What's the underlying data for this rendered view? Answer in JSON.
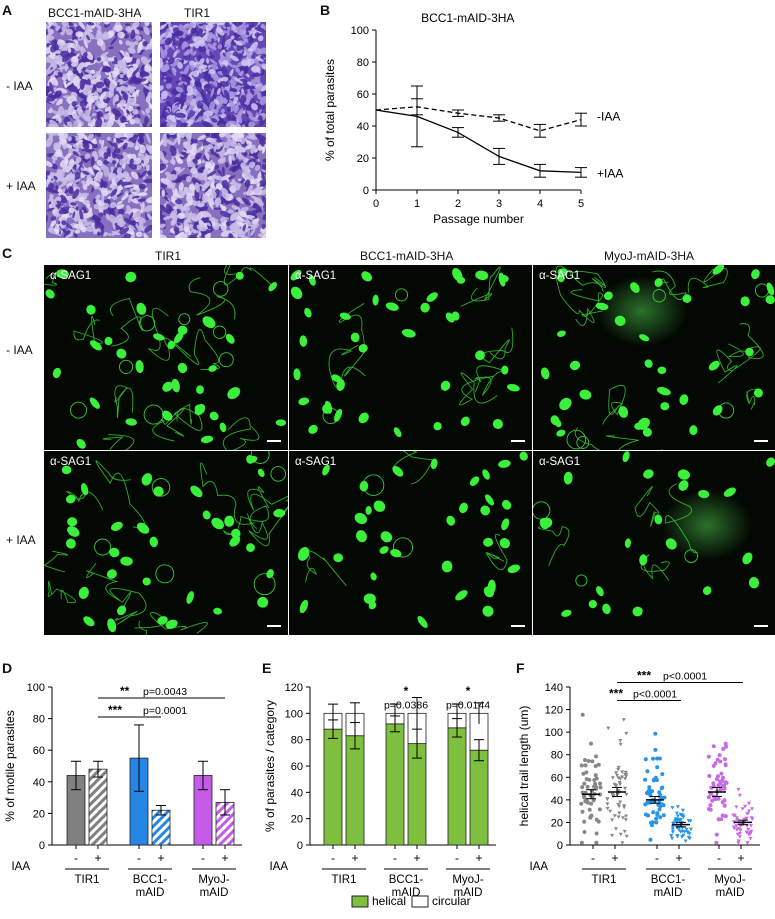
{
  "panels": {
    "A": "A",
    "B": "B",
    "C": "C",
    "D": "D",
    "E": "E",
    "F": "F"
  },
  "panel_a": {
    "col_labels": [
      "BCC1-mAID-3HA",
      "TIR1"
    ],
    "row_labels": [
      "- IAA",
      "+ IAA"
    ]
  },
  "panel_c": {
    "col_labels": [
      "TIR1",
      "BCC1-mAID-3HA",
      "MyoJ-mAID-3HA"
    ],
    "row_labels": [
      "- IAA",
      "+ IAA"
    ],
    "antibody": "α-SAG1"
  },
  "chart_data": [
    {
      "panel": "B",
      "type": "line",
      "title": "BCC1-mAID-3HA",
      "xlabel": "Passage number",
      "ylabel": "% of total parasites",
      "xlim": [
        0,
        5
      ],
      "ylim": [
        0,
        100
      ],
      "x_ticks": [
        0,
        1,
        2,
        3,
        4,
        5
      ],
      "y_ticks": [
        0,
        20,
        40,
        60,
        80,
        100
      ],
      "grid": false,
      "series": [
        {
          "name": "-IAA",
          "style": "dashed",
          "x": [
            0,
            1,
            2,
            3,
            4,
            5
          ],
          "y": [
            50,
            52,
            48,
            45,
            37,
            44
          ],
          "err": [
            0,
            5,
            2,
            2,
            4,
            4
          ]
        },
        {
          "name": "+IAA",
          "style": "solid",
          "x": [
            0,
            1,
            2,
            3,
            4,
            5
          ],
          "y": [
            50,
            46,
            36,
            21,
            12,
            11
          ],
          "err": [
            0,
            19,
            3,
            5,
            4,
            3
          ]
        }
      ]
    },
    {
      "panel": "D",
      "type": "bar",
      "ylabel": "% of motile parasites",
      "ylim": [
        0,
        100
      ],
      "y_ticks": [
        0,
        20,
        40,
        60,
        80,
        100
      ],
      "iaa_label": "IAA",
      "iaa_ticks": [
        "-",
        "+"
      ],
      "groups": [
        "TIR1",
        "BCC1-\nmAID",
        "MyoJ-\nmAID"
      ],
      "values": [
        44,
        48,
        55,
        22,
        44,
        27
      ],
      "errors": [
        9,
        5,
        21,
        3,
        9,
        8
      ],
      "colors": [
        "#808080",
        "#2586e6",
        "#c45ae8"
      ],
      "annotations": [
        {
          "stars": "***",
          "text": "p=0.0001"
        },
        {
          "stars": "**",
          "text": "p=0.0043"
        }
      ]
    },
    {
      "panel": "E",
      "type": "bar",
      "ylabel": "% of parasites / category",
      "ylim": [
        0,
        120
      ],
      "y_ticks": [
        0,
        20,
        40,
        60,
        80,
        100,
        120
      ],
      "iaa_label": "IAA",
      "iaa_ticks": [
        "-",
        "+"
      ],
      "groups": [
        "TIR1",
        "BCC1-\nmAID",
        "MyoJ-\nmAID"
      ],
      "series": [
        {
          "name": "helical",
          "color": "#7fbf3f",
          "values": [
            88,
            83,
            92,
            77,
            89,
            72
          ],
          "errors": [
            7,
            10,
            6,
            11,
            7,
            8
          ]
        },
        {
          "name": "circular",
          "color": "#ffffff",
          "values": [
            12,
            17,
            8,
            23,
            11,
            28
          ],
          "errors": [
            7,
            8,
            7,
            12,
            7,
            8
          ]
        }
      ],
      "annotations": [
        {
          "stars": "*",
          "text": "p=0.0386"
        },
        {
          "stars": "*",
          "text": "p=0.0144"
        }
      ]
    },
    {
      "panel": "F",
      "type": "scatter",
      "ylabel": "helical trail length (um)",
      "ylim": [
        0,
        140
      ],
      "y_ticks": [
        0,
        20,
        40,
        60,
        80,
        100,
        120,
        140
      ],
      "iaa_label": "IAA",
      "iaa_ticks": [
        "-",
        "+"
      ],
      "groups": [
        "TIR1",
        "BCC1-\nmAID",
        "MyoJ-\nmAID"
      ],
      "means": [
        45,
        47,
        40,
        18,
        47,
        20
      ],
      "sem": [
        4,
        4,
        3,
        2,
        4,
        2
      ],
      "colors": [
        "#888888",
        "#2a95e8",
        "#c86ae6"
      ],
      "annotations": [
        {
          "stars": "***",
          "text": "p<0.0001"
        },
        {
          "stars": "***",
          "text": "p<0.0001"
        }
      ]
    }
  ]
}
